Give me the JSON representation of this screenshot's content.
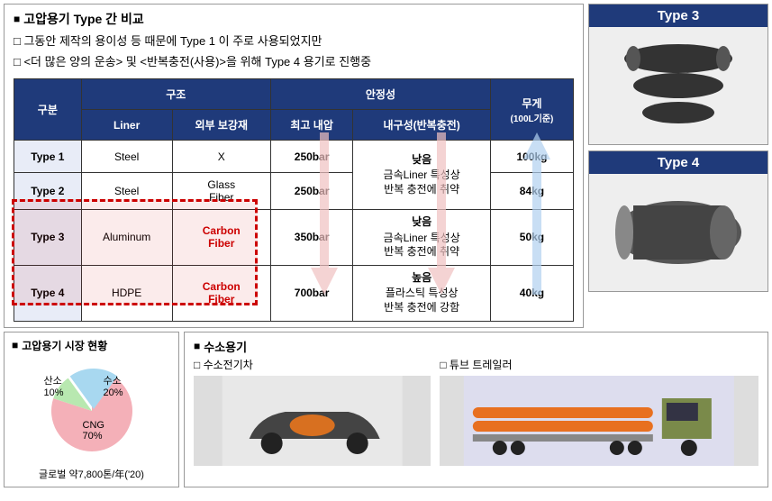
{
  "main": {
    "title": "고압용기 Type 간 비교",
    "bullet1": "그동안 제작의 용이성 등 때문에 Type 1 이 주로 사용되었지만",
    "bullet2": "<더 많은 양의 운송> 및 <반복충전(사용)>을 위해 Type 4 용기로 진행중"
  },
  "table": {
    "headers": {
      "category": "구분",
      "structure": "구조",
      "liner": "Liner",
      "reinforce": "외부 보강재",
      "stability": "안정성",
      "maxPressure": "최고 내압",
      "durability": "내구성(반복충전)",
      "weight": "무게",
      "weightSub": "(100L기준)"
    },
    "rows": [
      {
        "type": "Type 1",
        "liner": "Steel",
        "reinforce": "X",
        "pressure": "250bar",
        "durLevel": "낮음",
        "durDesc": "금속Liner 특성상\n반복 충전에 취약",
        "weight": "100kg",
        "carbon": false,
        "durRowspan": 2
      },
      {
        "type": "Type 2",
        "liner": "Steel",
        "reinforce": "Glass Fiber",
        "pressure": "250bar",
        "weight": "84kg",
        "carbon": false
      },
      {
        "type": "Type 3",
        "liner": "Aluminum",
        "reinforce": "Carbon Fiber",
        "pressure": "350bar",
        "durLevel": "낮음",
        "durDesc": "금속Liner 특성상\n반복 충전에 취약",
        "weight": "50kg",
        "carbon": true
      },
      {
        "type": "Type 4",
        "liner": "HDPE",
        "reinforce": "Carbon Fiber",
        "pressure": "700bar",
        "durLevel": "높음",
        "durDesc": "플라스틱 특성상\n반복 충전에 강함",
        "weight": "40kg",
        "carbon": true
      }
    ],
    "highlight": {
      "color": "#c00"
    },
    "arrows": {
      "pressure": {
        "color": "#e8b0b0",
        "dir": "down"
      },
      "durability": {
        "color": "#e8b0b0",
        "dir": "down"
      },
      "weight": {
        "color": "#a8c8e8",
        "dir": "up"
      }
    }
  },
  "rightCards": [
    {
      "title": "Type 3"
    },
    {
      "title": "Type 4"
    }
  ],
  "market": {
    "title": "고압용기 시장 현황",
    "caption": "글로벌 약7,800톤/年('20)",
    "pie": {
      "slices": [
        {
          "label": "CNG",
          "pct": 70,
          "color": "#f4b0b8"
        },
        {
          "label": "수소",
          "pct": 20,
          "color": "#a8d8f0"
        },
        {
          "label": "산소",
          "pct": 10,
          "color": "#b8e8b0"
        }
      ]
    }
  },
  "hydrogen": {
    "title": "수소용기",
    "sub1": "수소전기차",
    "sub2": "튜브 트레일러"
  }
}
